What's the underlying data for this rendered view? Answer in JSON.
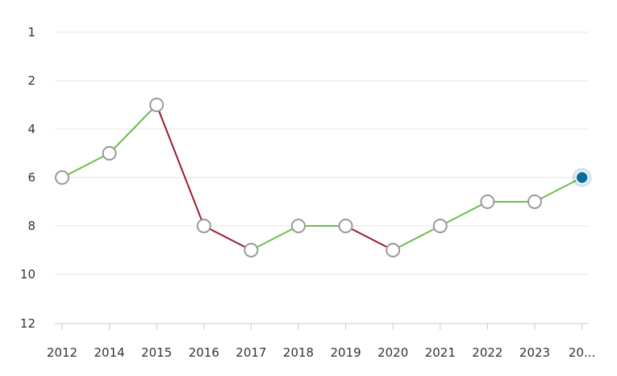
{
  "chart_data": {
    "type": "line",
    "title": "",
    "xlabel": "",
    "ylabel": "",
    "categories": [
      "2012",
      "2014",
      "2015",
      "2016",
      "2017",
      "2018",
      "2019",
      "2020",
      "2021",
      "2022",
      "2023",
      "20..."
    ],
    "values": [
      6,
      5,
      3,
      8,
      9,
      8,
      8,
      9,
      8,
      7,
      7,
      6
    ],
    "y_ticks": [
      1,
      2,
      4,
      6,
      8,
      10,
      12
    ],
    "y_reversed": true,
    "grid": true,
    "colors": {
      "improve": "#6abf4b",
      "decline": "#9b1b30",
      "point_fill": "#ffffff",
      "point_stroke": "#999999",
      "highlight": "#0a6e9c"
    }
  }
}
